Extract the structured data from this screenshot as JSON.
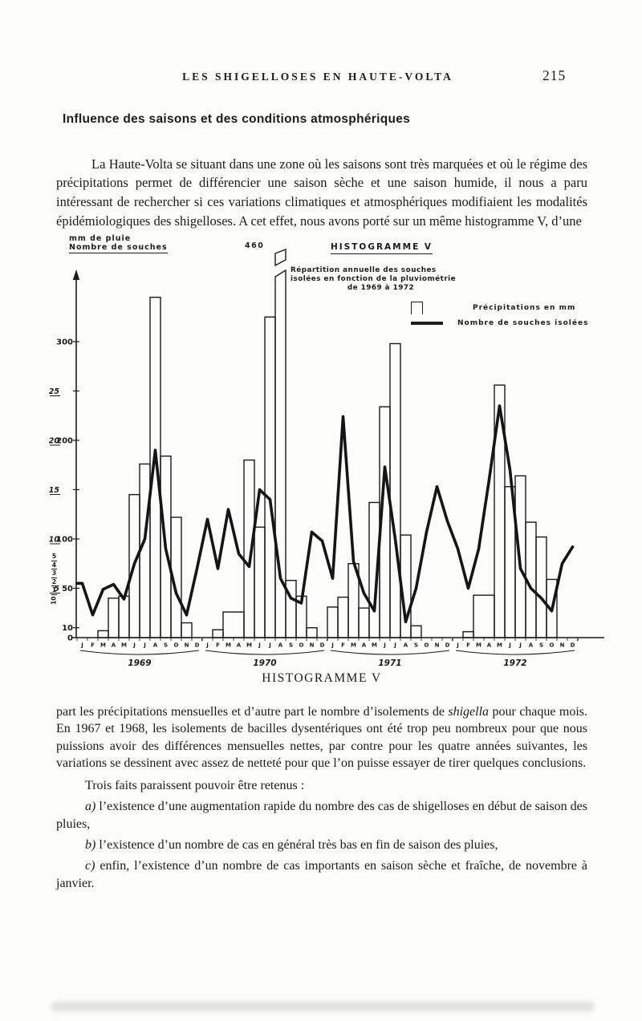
{
  "page": {
    "running_head": "LES SHIGELLOSES EN HAUTE-VOLTA",
    "page_number": "215",
    "section_heading": "Influence des saisons et des conditions atmosphériques",
    "para1": "La Haute-Volta se situant dans une zone où les saisons sont très marquées et où le régime des précipitations permet de différencier une saison sèche et une saison humide, il nous a paru intéressant de rechercher si ces variations climatiques et atmosphériques modifiaient les modalités épidémiologiques des shigelloses. A cet effet, nous avons porté sur un même histogramme V, d’une",
    "caption": "HISTOGRAMME V",
    "para2_before": "part les précipitations mensuelles et d’autre part le nombre d’isolements de",
    "para2_italic": "shigella",
    "para2_after": "pour chaque mois. En 1967 et 1968, les isolements de bacilles dysentériques ont été trop peu nombreux pour que nous puissions avoir des différences mensuelles nettes, par contre pour les quatre années suivantes, les variations se dessinent avec assez de netteté pour que l’on puisse essayer de tirer quelques conclusions.",
    "para3": "Trois faits paraissent pouvoir être retenus :",
    "items": [
      {
        "letter": "a)",
        "text": "l’existence d’une augmentation rapide du nombre des cas de shigelloses en début de saison des pluies,"
      },
      {
        "letter": "b)",
        "text": "l’existence d’un nombre de cas en général très bas en fin de saison des pluies,"
      },
      {
        "letter": "c)",
        "text": "enfin, l’existence d’un nombre de cas importants en saison sèche et fraîche, de novembre à janvier."
      }
    ]
  },
  "chart": {
    "ylabel_line1": "mm de pluie",
    "ylabel_line2": "Nombre de souches",
    "title": "HISTOGRAMME V",
    "subtitle_lines": [
      "Répartition annuelle des souches",
      "isolées en fonction de la pluviométrie",
      "de 1969 à 1972"
    ],
    "legend": {
      "bars": "Précipitations en mm",
      "line": "Nombre de souches isolées"
    },
    "cut_bar_label": "460",
    "minor_axis_digits": [
      "5",
      "4",
      "3",
      "2",
      "1"
    ],
    "rotated_label": "10"
  },
  "chart_data": {
    "type": "bar+line",
    "title": "HISTOGRAMME V — Répartition annuelle des souches isolées en fonction de la pluviométrie de 1969 à 1972",
    "months": [
      "J",
      "F",
      "M",
      "A",
      "M",
      "J",
      "J",
      "A",
      "S",
      "O",
      "N",
      "D"
    ],
    "years": [
      "1969",
      "1970",
      "1971",
      "1972"
    ],
    "series": [
      {
        "name": "Précipitations en mm",
        "type": "bar",
        "unit": "mm",
        "values_by_year": {
          "1969": [
            0,
            0,
            7,
            40,
            42,
            145,
            176,
            345,
            184,
            122,
            15,
            0
          ],
          "1970": [
            0,
            8,
            26,
            26,
            180,
            112,
            325,
            460,
            58,
            42,
            10,
            0
          ],
          "1971": [
            31,
            41,
            75,
            30,
            137,
            234,
            298,
            104,
            12,
            0,
            0,
            0
          ],
          "1972": [
            0,
            6,
            43,
            43,
            256,
            153,
            164,
            117,
            102,
            59,
            0,
            0
          ]
        }
      },
      {
        "name": "Nombre de souches isolées",
        "type": "line",
        "unit": "souches",
        "values_by_year": {
          "1969": [
            5.5,
            2.3,
            4.9,
            5.4,
            3.9,
            7.5,
            10,
            19,
            9,
            4.5,
            2.3,
            7
          ],
          "1970": [
            12,
            7,
            13,
            8.5,
            7.2,
            15,
            14,
            6,
            4,
            3.5,
            10.7,
            9.8
          ],
          "1971": [
            6,
            22.4,
            7.7,
            4.5,
            2.7,
            17.3,
            10,
            1.6,
            5,
            10.7,
            15.3,
            11.8
          ],
          "1972": [
            9,
            5,
            9,
            16,
            23.5,
            17,
            7,
            5,
            4,
            2.7,
            7.5,
            9.2
          ]
        }
      }
    ],
    "y_axis_mm_ticks": [
      300,
      200,
      100,
      50,
      10,
      0
    ],
    "y_axis_souches_ticks": [
      25,
      20,
      15,
      10,
      5
    ],
    "souches_to_mm_scale": 10,
    "ylim_mm": [
      0,
      460
    ],
    "clipped_bar": {
      "year": "1970",
      "month_index": 7,
      "value": 460
    },
    "grid": false,
    "legend_position": "top-right"
  }
}
